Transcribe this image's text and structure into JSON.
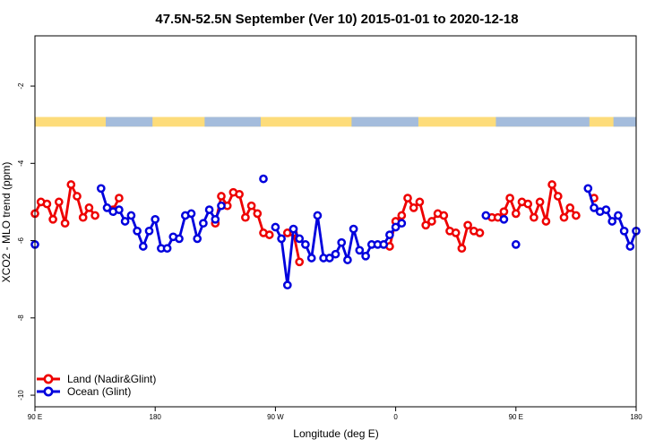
{
  "chart_data": {
    "type": "line",
    "title": "47.5N-52.5N September (Ver 10)   2015-01-01 to 2020-12-18",
    "xlabel": "Longitude (deg E)",
    "ylabel": "XCO2 - MLO trend (ppm)",
    "xlim": [
      90,
      540
    ],
    "ylim": [
      -10.3,
      -0.7
    ],
    "x_ticks": [
      {
        "value": 90,
        "label": "90 E"
      },
      {
        "value": 180,
        "label": "180"
      },
      {
        "value": 270,
        "label": "90 W"
      },
      {
        "value": 360,
        "label": "0"
      },
      {
        "value": 450,
        "label": "90 E"
      },
      {
        "value": 540,
        "label": "180"
      }
    ],
    "y_ticks": [
      {
        "value": -2,
        "label": "-2"
      },
      {
        "value": -4,
        "label": "-4"
      },
      {
        "value": -6,
        "label": "-6"
      },
      {
        "value": -8,
        "label": "-8"
      },
      {
        "value": -10,
        "label": "-10"
      }
    ],
    "land_ocean_strip": {
      "y_range": [
        -3.05,
        -2.8
      ],
      "land_color": "#fddc7a",
      "ocean_color": "#a4bcdc",
      "ocean_segments": [
        [
          143,
          178
        ],
        [
          217,
          259
        ],
        [
          327,
          377
        ],
        [
          435,
          505
        ],
        [
          523,
          541
        ]
      ]
    },
    "legend": {
      "position": "bottom-left"
    },
    "series": [
      {
        "name": "Land (Nadir&Glint)",
        "color": "#ee0000",
        "segments": [
          [
            [
              90,
              -5.3
            ],
            [
              94.5,
              -5.0
            ],
            [
              99,
              -5.05
            ],
            [
              103.5,
              -5.45
            ],
            [
              108,
              -5.0
            ],
            [
              112.5,
              -5.55
            ],
            [
              117,
              -4.55
            ],
            [
              121.5,
              -4.85
            ],
            [
              126,
              -5.4
            ],
            [
              130.5,
              -5.15
            ],
            [
              135,
              -5.35
            ]
          ],
          [
            [
              148.5,
              -5.2
            ],
            [
              153,
              -4.9
            ]
          ],
          [
            [
              225,
              -5.55
            ],
            [
              229.5,
              -4.85
            ],
            [
              234,
              -5.1
            ],
            [
              238.5,
              -4.75
            ],
            [
              243,
              -4.8
            ],
            [
              247.5,
              -5.4
            ],
            [
              252,
              -5.1
            ],
            [
              256.5,
              -5.3
            ],
            [
              261,
              -5.8
            ],
            [
              265.5,
              -5.85
            ]
          ],
          [
            [
              279,
              -5.8
            ],
            [
              283.5,
              -5.8
            ],
            [
              288,
              -6.55
            ]
          ],
          [
            [
              355.5,
              -6.15
            ],
            [
              360,
              -5.5
            ],
            [
              364.5,
              -5.35
            ],
            [
              369,
              -4.9
            ],
            [
              373.5,
              -5.15
            ],
            [
              378,
              -5.0
            ],
            [
              382.5,
              -5.6
            ],
            [
              387,
              -5.5
            ],
            [
              391.5,
              -5.3
            ],
            [
              396,
              -5.35
            ],
            [
              400.5,
              -5.75
            ],
            [
              405,
              -5.8
            ],
            [
              409.5,
              -6.2
            ],
            [
              414,
              -5.6
            ],
            [
              418.5,
              -5.75
            ],
            [
              423,
              -5.8
            ]
          ],
          [
            [
              432,
              -5.4
            ],
            [
              436.5,
              -5.4
            ],
            [
              441,
              -5.25
            ],
            [
              445.5,
              -4.9
            ],
            [
              450,
              -5.3
            ],
            [
              454.5,
              -5.0
            ],
            [
              459,
              -5.05
            ],
            [
              463.5,
              -5.4
            ],
            [
              468,
              -5.0
            ],
            [
              472.5,
              -5.5
            ],
            [
              477,
              -4.55
            ],
            [
              481.5,
              -4.85
            ],
            [
              486,
              -5.4
            ],
            [
              490.5,
              -5.15
            ],
            [
              495,
              -5.35
            ]
          ],
          [
            [
              508.5,
              -4.9
            ]
          ]
        ]
      },
      {
        "name": "Ocean (Glint)",
        "color": "#0000dd",
        "segments": [
          [
            [
              90,
              -6.1
            ]
          ],
          [
            [
              139.5,
              -4.65
            ],
            [
              144,
              -5.15
            ],
            [
              148.5,
              -5.25
            ],
            [
              153,
              -5.2
            ],
            [
              157.5,
              -5.5
            ],
            [
              162,
              -5.35
            ],
            [
              166.5,
              -5.75
            ],
            [
              171,
              -6.15
            ],
            [
              175.5,
              -5.75
            ],
            [
              180,
              -5.45
            ],
            [
              184.5,
              -6.2
            ],
            [
              189,
              -6.2
            ],
            [
              193.5,
              -5.9
            ],
            [
              198,
              -5.95
            ],
            [
              202.5,
              -5.35
            ],
            [
              207,
              -5.3
            ],
            [
              211.5,
              -5.95
            ],
            [
              216,
              -5.55
            ],
            [
              220.5,
              -5.2
            ],
            [
              225,
              -5.45
            ],
            [
              229.5,
              -5.1
            ]
          ],
          [
            [
              261,
              -4.4
            ]
          ],
          [
            [
              270,
              -5.65
            ],
            [
              274.5,
              -5.95
            ],
            [
              279,
              -7.15
            ],
            [
              283.5,
              -5.7
            ],
            [
              288,
              -5.95
            ],
            [
              292.5,
              -6.1
            ],
            [
              297,
              -6.45
            ],
            [
              301.5,
              -5.35
            ],
            [
              306,
              -6.45
            ],
            [
              310.5,
              -6.45
            ],
            [
              315,
              -6.35
            ],
            [
              319.5,
              -6.05
            ],
            [
              324,
              -6.5
            ],
            [
              328.5,
              -5.7
            ],
            [
              333,
              -6.25
            ],
            [
              337.5,
              -6.4
            ],
            [
              342,
              -6.1
            ],
            [
              346.5,
              -6.1
            ],
            [
              351,
              -6.1
            ],
            [
              355.5,
              -5.85
            ],
            [
              360,
              -5.65
            ],
            [
              364.5,
              -5.55
            ]
          ],
          [
            [
              427.5,
              -5.35
            ]
          ],
          [
            [
              441,
              -5.45
            ]
          ],
          [
            [
              450,
              -6.1
            ]
          ],
          [
            [
              504,
              -4.65
            ],
            [
              508.5,
              -5.15
            ],
            [
              513,
              -5.25
            ],
            [
              517.5,
              -5.2
            ],
            [
              522,
              -5.5
            ],
            [
              526.5,
              -5.35
            ],
            [
              531,
              -5.75
            ],
            [
              535.5,
              -6.15
            ],
            [
              540,
              -5.75
            ]
          ]
        ]
      }
    ]
  }
}
